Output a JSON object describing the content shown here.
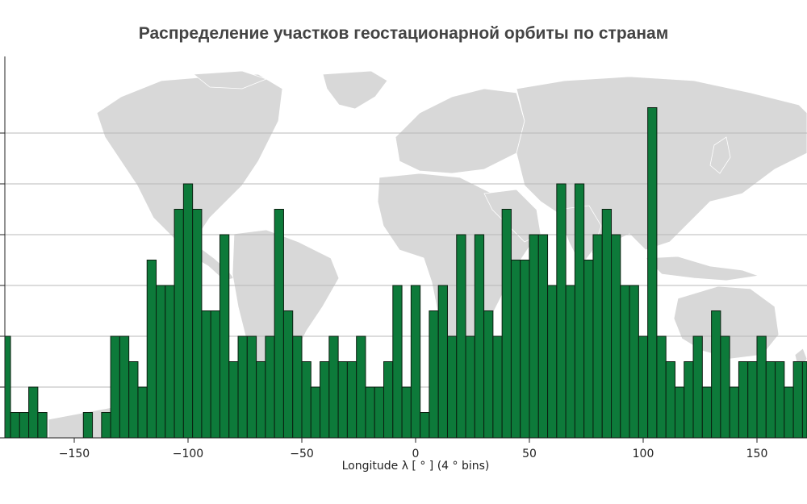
{
  "chart_data": {
    "type": "bar",
    "title": "Распределение участков геостационарной орбиты по странам",
    "xlabel": "Longitude λ [ ° ] (4 ° bins)",
    "ylabel": "",
    "xlim": [
      -182,
      172
    ],
    "ylim": [
      0,
      13
    ],
    "x_ticks": [
      -150,
      -100,
      -50,
      0,
      50,
      100,
      150
    ],
    "x_tick_labels": [
      "−150",
      "−100",
      "−50",
      "0",
      "50",
      "100",
      "150"
    ],
    "grid": "horizontal",
    "background": "world map",
    "bin_width": 4,
    "bin_starts": [
      -182,
      -178,
      -174,
      -170,
      -166,
      -162,
      -158,
      -154,
      -150,
      -146,
      -142,
      -138,
      -134,
      -130,
      -126,
      -122,
      -118,
      -114,
      -110,
      -106,
      -102,
      -98,
      -94,
      -90,
      -86,
      -82,
      -78,
      -74,
      -70,
      -66,
      -62,
      -58,
      -54,
      -50,
      -46,
      -42,
      -38,
      -34,
      -30,
      -26,
      -22,
      -18,
      -14,
      -10,
      -6,
      -2,
      2,
      6,
      10,
      14,
      18,
      22,
      26,
      30,
      34,
      38,
      42,
      46,
      50,
      54,
      58,
      62,
      66,
      70,
      74,
      78,
      82,
      86,
      90,
      94,
      98,
      102,
      106,
      110,
      114,
      118,
      122,
      126,
      130,
      134,
      138,
      142,
      146,
      150,
      154,
      158,
      162,
      166,
      170
    ],
    "values": [
      4,
      1,
      1,
      2,
      1,
      0,
      0,
      0,
      0,
      1,
      0,
      1,
      4,
      4,
      3,
      2,
      7,
      6,
      6,
      9,
      10,
      9,
      5,
      5,
      8,
      3,
      4,
      4,
      3,
      4,
      9,
      5,
      4,
      3,
      2,
      3,
      4,
      3,
      3,
      4,
      2,
      2,
      3,
      6,
      2,
      6,
      1,
      5,
      6,
      4,
      8,
      4,
      8,
      5,
      4,
      9,
      7,
      7,
      8,
      8,
      6,
      10,
      6,
      10,
      7,
      8,
      9,
      8,
      6,
      6,
      4,
      13,
      4,
      3,
      2,
      3,
      4,
      2,
      5,
      4,
      2,
      3,
      3,
      4,
      3,
      3,
      2,
      3,
      3
    ]
  },
  "colors": {
    "bar_fill": "#0d7a3a",
    "bar_edge": "#0b1f10",
    "grid": "#b9b9b9",
    "map_land": "#d8d8d8",
    "map_border": "#ffffff",
    "text": "#222222"
  }
}
